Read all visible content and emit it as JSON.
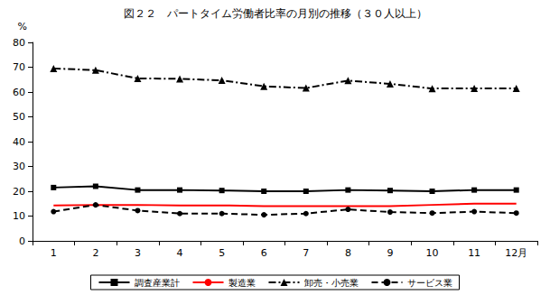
{
  "chart_data": {
    "type": "line",
    "title": "図２２　パートタイム労働者比率の月別の推移（３０人以上）",
    "y_label": "%",
    "categories": [
      "1",
      "2",
      "3",
      "4",
      "5",
      "6",
      "7",
      "8",
      "9",
      "10",
      "11",
      "12月"
    ],
    "series": [
      {
        "name": "調査産業計",
        "color": "#000000",
        "marker": "square",
        "line_style": "solid",
        "values": [
          21.5,
          22,
          20.5,
          20.5,
          20.3,
          20,
          20,
          20.5,
          20.3,
          20,
          20.5,
          20.5
        ]
      },
      {
        "name": "製造業",
        "color": "#ff0000",
        "marker": "none",
        "line_style": "solid",
        "values": [
          14.3,
          14.5,
          14.5,
          14.3,
          14.3,
          14,
          14,
          14,
          14,
          14.5,
          15,
          15
        ]
      },
      {
        "name": "卸売・小売業",
        "color": "#000000",
        "marker": "triangle",
        "line_style": "dashdot",
        "values": [
          69.5,
          68.8,
          65.5,
          65.3,
          64.7,
          62.3,
          61.6,
          64.6,
          63.3,
          61.4,
          61.5,
          61.5
        ]
      },
      {
        "name": "サービス業",
        "color": "#000000",
        "marker": "circle",
        "line_style": "dashed",
        "values": [
          11.8,
          14.5,
          12.2,
          11,
          11,
          10.5,
          11,
          12.7,
          11.6,
          11.2,
          11.8,
          11.2
        ]
      }
    ],
    "ylim": [
      0,
      80
    ],
    "yticks": [
      0,
      10,
      20,
      30,
      40,
      50,
      60,
      70,
      80
    ],
    "grid": false,
    "legend": "bottom"
  }
}
